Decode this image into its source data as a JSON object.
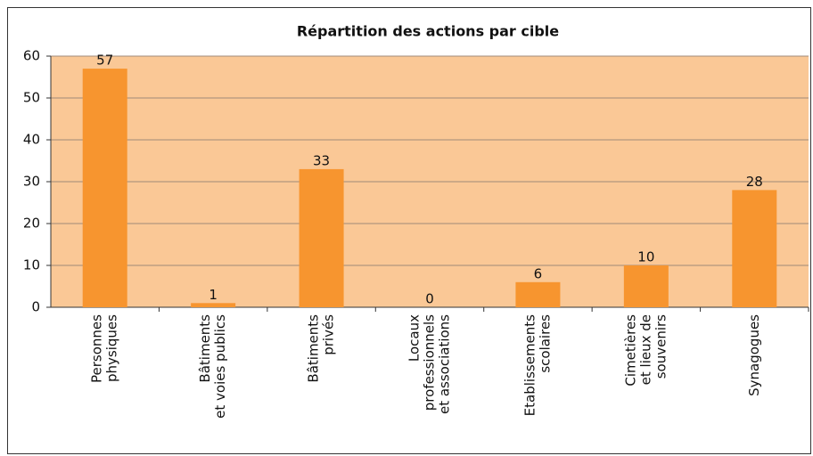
{
  "chart_data": {
    "type": "bar",
    "title": "Répartition des actions par cible",
    "categories": [
      [
        "Personnes",
        "physiques"
      ],
      [
        "Bâtiments",
        "et voies publics"
      ],
      [
        "Bâtiments",
        "privés"
      ],
      [
        "Locaux",
        "professionnels",
        "et associations"
      ],
      [
        "Etablissements",
        "scolaires"
      ],
      [
        "Cimetières",
        "et lieux de",
        "souvenirs"
      ],
      [
        "Synagogues"
      ]
    ],
    "values": [
      57,
      1,
      33,
      0,
      6,
      10,
      28
    ],
    "color": "#f7952f",
    "background": "#fac896",
    "ylim": [
      0,
      60
    ],
    "yticks": [
      0,
      10,
      20,
      30,
      40,
      50,
      60
    ],
    "grid": true
  }
}
